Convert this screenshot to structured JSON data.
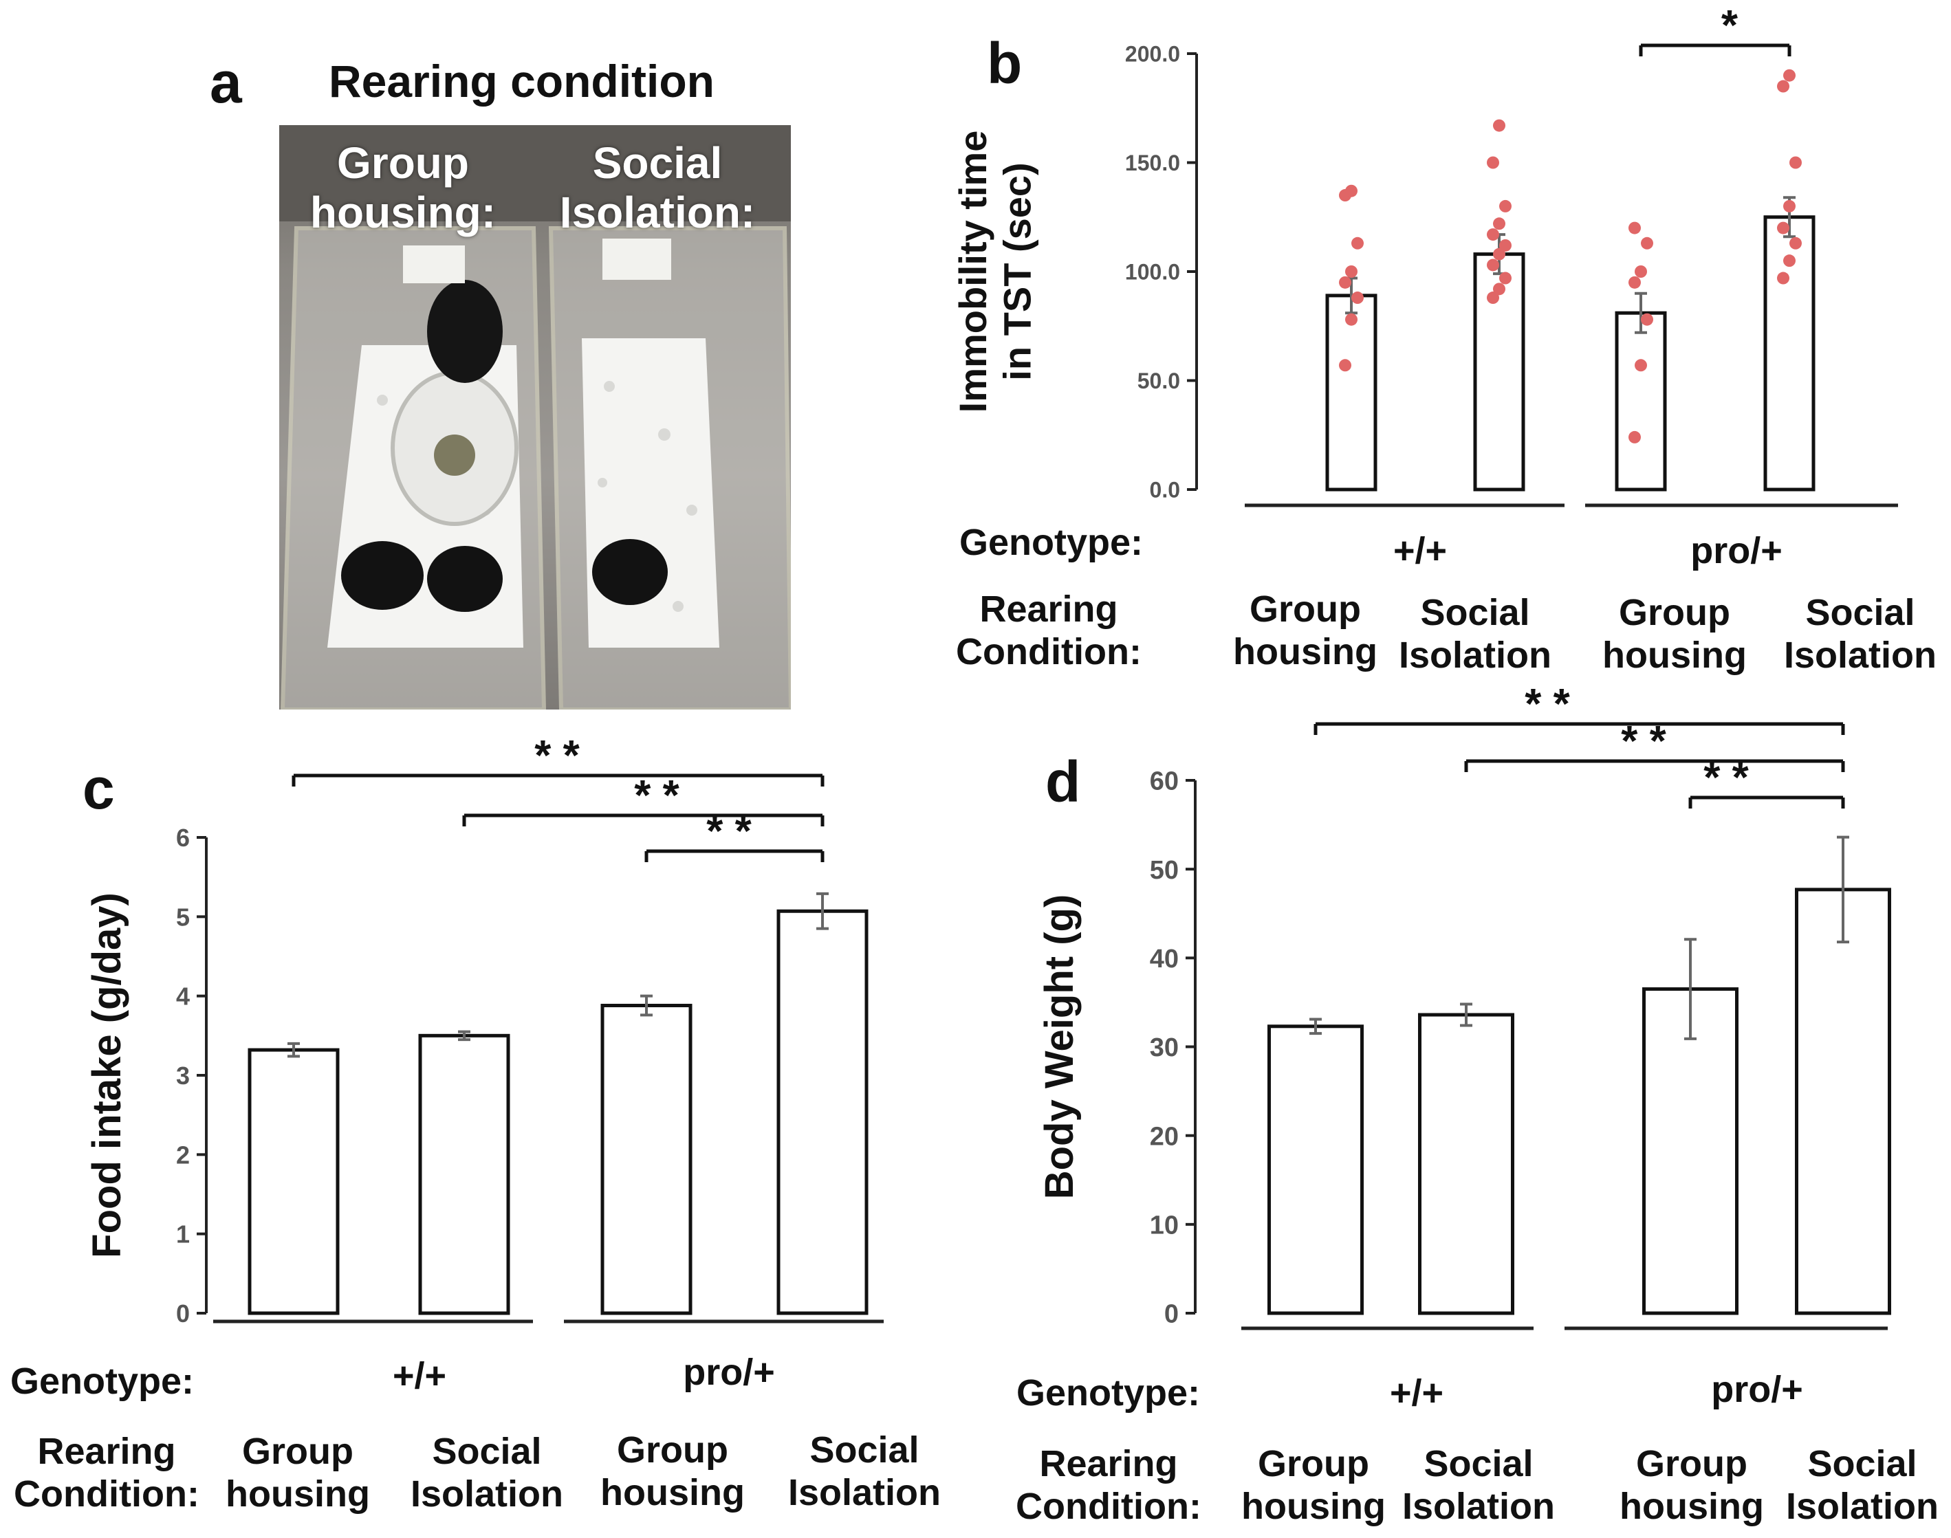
{
  "panel_a": {
    "letter": "a",
    "title": "Rearing condition",
    "left_label_line1": "Group",
    "left_label_line2": "housing:",
    "right_label_line1": "Social",
    "right_label_line2": "Isolation:"
  },
  "shared_labels": {
    "genotype_label": "Genotype:",
    "rearing_label_line1": "Rearing",
    "rearing_label_line2": "Condition:",
    "genotypes": [
      "+/+",
      "pro/+"
    ],
    "conditions": [
      [
        "Group",
        "housing"
      ],
      [
        "Social",
        "Isolation"
      ],
      [
        "Group",
        "housing"
      ],
      [
        "Social",
        "Isolation"
      ]
    ]
  },
  "chart_data": [
    {
      "panel": "b",
      "type": "bar",
      "ylabel_line1": "Immobility time",
      "ylabel_line2": "in TST (sec)",
      "ylim": [
        0,
        200
      ],
      "yticks": [
        "0.0",
        "50.0",
        "100.0",
        "150.0",
        "200.0"
      ],
      "values": [
        89,
        108,
        81,
        125
      ],
      "errors": [
        8,
        9,
        9,
        9
      ],
      "points": [
        [
          57,
          78,
          88,
          95,
          100,
          113,
          135,
          137
        ],
        [
          88,
          92,
          97,
          103,
          108,
          112,
          117,
          122,
          130,
          150,
          167
        ],
        [
          24,
          57,
          78,
          95,
          100,
          113,
          120
        ],
        [
          97,
          105,
          113,
          120,
          130,
          150,
          185,
          190
        ]
      ],
      "significance": [
        {
          "from": 2,
          "to": 3,
          "label": "*"
        }
      ]
    },
    {
      "panel": "c",
      "type": "bar",
      "ylabel": "Food intake (g/day)",
      "ylim": [
        0,
        6
      ],
      "yticks": [
        "0",
        "1",
        "2",
        "3",
        "4",
        "5",
        "6"
      ],
      "values": [
        3.32,
        3.5,
        3.88,
        5.07
      ],
      "errors": [
        0.08,
        0.05,
        0.12,
        0.22
      ],
      "significance": [
        {
          "from": 0,
          "to": 3,
          "label": "* *"
        },
        {
          "from": 1,
          "to": 3,
          "label": "* *"
        },
        {
          "from": 2,
          "to": 3,
          "label": "* *"
        }
      ]
    },
    {
      "panel": "d",
      "type": "bar",
      "ylabel": "Body Weight (g)",
      "ylim": [
        0,
        60
      ],
      "yticks": [
        "0",
        "10",
        "20",
        "30",
        "40",
        "50",
        "60"
      ],
      "values": [
        32.3,
        33.6,
        36.5,
        47.7
      ],
      "errors": [
        0.8,
        1.2,
        5.6,
        5.9
      ],
      "significance": [
        {
          "from": 0,
          "to": 3,
          "label": "* *"
        },
        {
          "from": 1,
          "to": 3,
          "label": "* *"
        },
        {
          "from": 2,
          "to": 3,
          "label": "* *"
        }
      ]
    }
  ]
}
